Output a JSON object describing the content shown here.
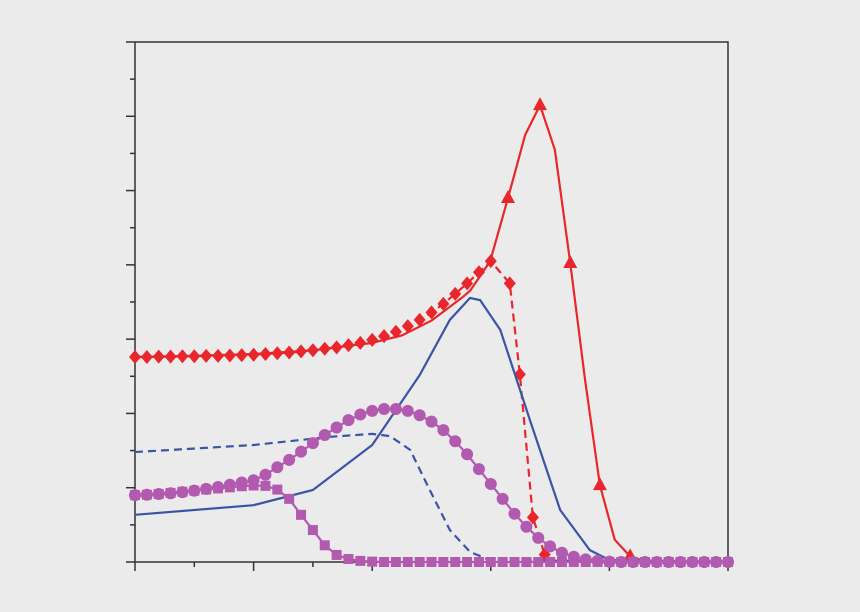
{
  "chart_data": {
    "type": "line",
    "xlim": [
      0,
      10
    ],
    "xticks": [
      0,
      2,
      4,
      6,
      8,
      10
    ],
    "xminorticks": [
      1,
      3,
      5,
      7,
      9
    ],
    "ylim": [
      0,
      14
    ],
    "yticks": [
      0,
      2,
      4,
      6,
      8,
      10,
      12,
      14
    ],
    "yminorticks": [
      1,
      3,
      5,
      7,
      9,
      11,
      13
    ],
    "series": [
      {
        "color": "#e8262b",
        "line": "solid",
        "marker": "none",
        "x": [
          0,
          1,
          2,
          3,
          4,
          4.5,
          5,
          5.5,
          5.65,
          5.99,
          6.29,
          6.58,
          6.83,
          7.08,
          7.34,
          7.59,
          7.84,
          8.09,
          8.35,
          8.6,
          10
        ],
        "values": [
          5.52,
          5.55,
          5.6,
          5.7,
          5.9,
          6.1,
          6.5,
          7.1,
          7.3,
          8.1,
          9.8,
          11.5,
          12.3,
          11.1,
          8.05,
          4.9,
          2.07,
          0.6,
          0.15,
          0.02,
          0
        ]
      },
      {
        "color": "#e8262b",
        "line": "none",
        "marker": "triangle",
        "x": [
          6.29,
          6.83,
          7.34,
          7.84,
          8.35
        ],
        "values": [
          9.8,
          12.3,
          8.05,
          2.07,
          0.15
        ]
      },
      {
        "color": "#e8262b",
        "line": "dashed",
        "marker": "diamond",
        "x": [
          0,
          0.2,
          0.4,
          0.6,
          0.8,
          1.0,
          1.2,
          1.4,
          1.6,
          1.8,
          2.0,
          2.2,
          2.4,
          2.6,
          2.8,
          3.0,
          3.2,
          3.4,
          3.6,
          3.8,
          4.0,
          4.2,
          4.4,
          4.6,
          4.8,
          5.0,
          5.2,
          5.4,
          5.6,
          5.8,
          6.0,
          6.32,
          6.49,
          6.71,
          6.91
        ],
        "values": [
          5.52,
          5.52,
          5.53,
          5.53,
          5.54,
          5.54,
          5.55,
          5.55,
          5.56,
          5.57,
          5.58,
          5.6,
          5.62,
          5.64,
          5.67,
          5.7,
          5.74,
          5.78,
          5.84,
          5.9,
          5.98,
          6.08,
          6.2,
          6.35,
          6.52,
          6.72,
          6.95,
          7.22,
          7.5,
          7.8,
          8.1,
          7.5,
          5.05,
          1.2,
          0.2
        ]
      },
      {
        "color": "#3a55a4",
        "line": "solid",
        "marker": "none",
        "x": [
          0,
          2,
          3,
          4,
          4.8,
          5.31,
          5.65,
          5.82,
          6.16,
          6.66,
          7.17,
          7.67,
          8,
          10
        ],
        "values": [
          1.27,
          1.53,
          1.94,
          3.15,
          5.03,
          6.52,
          7.11,
          7.05,
          6.25,
          3.82,
          1.4,
          0.32,
          0.05,
          0
        ]
      },
      {
        "color": "#3a55a4",
        "line": "dashed",
        "marker": "none",
        "x": [
          0,
          2,
          3.29,
          4,
          4.3,
          4.64,
          4.97,
          5.31,
          5.65,
          5.99,
          10
        ],
        "values": [
          2.96,
          3.15,
          3.37,
          3.45,
          3.39,
          3.02,
          1.94,
          0.86,
          0.27,
          0.05,
          0
        ]
      },
      {
        "color": "#b25aaf",
        "line": "solid",
        "marker": "circle",
        "x": [
          0,
          0.2,
          0.4,
          0.6,
          0.8,
          1.0,
          1.2,
          1.4,
          1.6,
          1.8,
          2.0,
          2.2,
          2.4,
          2.6,
          2.8,
          3.0,
          3.2,
          3.4,
          3.6,
          3.8,
          4.0,
          4.2,
          4.4,
          4.6,
          4.8,
          5.0,
          5.2,
          5.4,
          5.6,
          5.8,
          6.0,
          6.2,
          6.4,
          6.6,
          6.8,
          7.0,
          7.2,
          7.4,
          7.6,
          7.8,
          8.0,
          8.2,
          8.4,
          8.6,
          8.8,
          9.0,
          9.2,
          9.4,
          9.6,
          9.8,
          10.0
        ],
        "values": [
          1.8,
          1.81,
          1.83,
          1.85,
          1.88,
          1.92,
          1.97,
          2.02,
          2.08,
          2.14,
          2.2,
          2.35,
          2.55,
          2.75,
          2.97,
          3.2,
          3.42,
          3.62,
          3.82,
          3.97,
          4.07,
          4.12,
          4.12,
          4.07,
          3.95,
          3.78,
          3.55,
          3.25,
          2.9,
          2.5,
          2.1,
          1.7,
          1.3,
          0.95,
          0.65,
          0.42,
          0.25,
          0.14,
          0.07,
          0.03,
          0.01,
          0,
          0,
          0,
          0,
          0,
          0,
          0,
          0,
          0,
          0
        ]
      },
      {
        "color": "#b25aaf",
        "line": "solid",
        "marker": "square",
        "x": [
          0,
          0.2,
          0.4,
          0.6,
          0.8,
          1.0,
          1.2,
          1.4,
          1.6,
          1.8,
          2.0,
          2.2,
          2.4,
          2.6,
          2.8,
          3.0,
          3.2,
          3.4,
          3.6,
          3.8,
          4.0,
          4.2,
          4.4,
          4.6,
          4.8,
          5.0,
          5.2,
          5.4,
          5.6,
          5.8,
          6.0,
          6.2,
          6.4,
          6.6,
          6.8,
          7.0,
          7.2,
          7.4,
          7.6,
          7.8,
          8.0,
          8.2,
          8.4,
          8.6,
          8.8,
          9.0,
          9.2,
          9.4,
          9.6,
          9.8,
          10.0
        ],
        "values": [
          1.8,
          1.81,
          1.83,
          1.86,
          1.89,
          1.92,
          1.95,
          1.98,
          2.01,
          2.04,
          2.06,
          2.05,
          1.95,
          1.7,
          1.27,
          0.86,
          0.45,
          0.19,
          0.08,
          0.03,
          0.01,
          0,
          0,
          0,
          0,
          0,
          0,
          0,
          0,
          0,
          0,
          0,
          0,
          0,
          0,
          0,
          0,
          0,
          0,
          0,
          0,
          0,
          0,
          0,
          0,
          0,
          0,
          0,
          0,
          0,
          0
        ]
      }
    ]
  }
}
